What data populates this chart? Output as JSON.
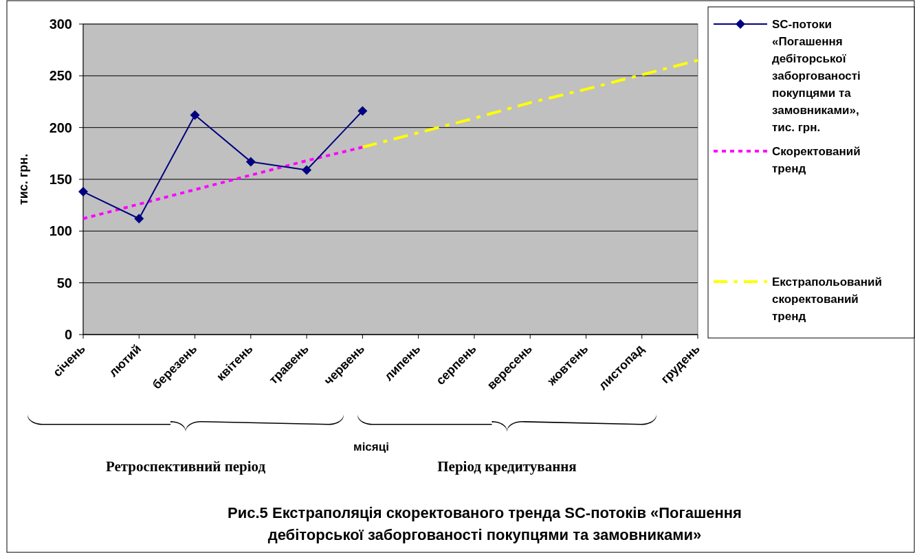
{
  "chart_data": {
    "type": "line",
    "title": "Рис.5 Екстраполяція скоректованого тренда SC-потоків «Погашення дебіторської заборгованості покупцями та замовниками»",
    "xlabel": "місяці",
    "ylabel": "тис. грн.",
    "categories": [
      "січень",
      "лютий",
      "березень",
      "квітень",
      "травень",
      "червень",
      "липень",
      "серпень",
      "вересень",
      "жовтень",
      "листопад",
      "грудень"
    ],
    "series": [
      {
        "name": "SC-потоки «Погашення дебіторської заборгованості покупцями та замовниками», тис. грн.",
        "color": "#000080",
        "marker": "diamond",
        "line_style": "solid",
        "values": [
          138,
          112,
          212,
          167,
          159,
          216,
          null,
          null,
          null,
          null,
          null,
          null
        ]
      },
      {
        "name": "Скоректований тренд",
        "color": "#ff00ff",
        "marker": "none",
        "line_style": "dotted",
        "values": [
          112,
          126,
          140,
          154,
          168,
          181,
          null,
          null,
          null,
          null,
          null,
          null
        ]
      },
      {
        "name": "Екстрапольований скоректований тренд",
        "color": "#ffff00",
        "marker": "none",
        "line_style": "dashed",
        "values": [
          null,
          null,
          null,
          null,
          null,
          181,
          195,
          209,
          224,
          237,
          251,
          265
        ]
      }
    ],
    "ylim": [
      0,
      300
    ],
    "yticks": [
      0,
      50,
      100,
      150,
      200,
      250,
      300
    ],
    "grid": "y",
    "legend": "right",
    "annotations": [
      "Ретроспективний період",
      "Період кредитування"
    ]
  }
}
